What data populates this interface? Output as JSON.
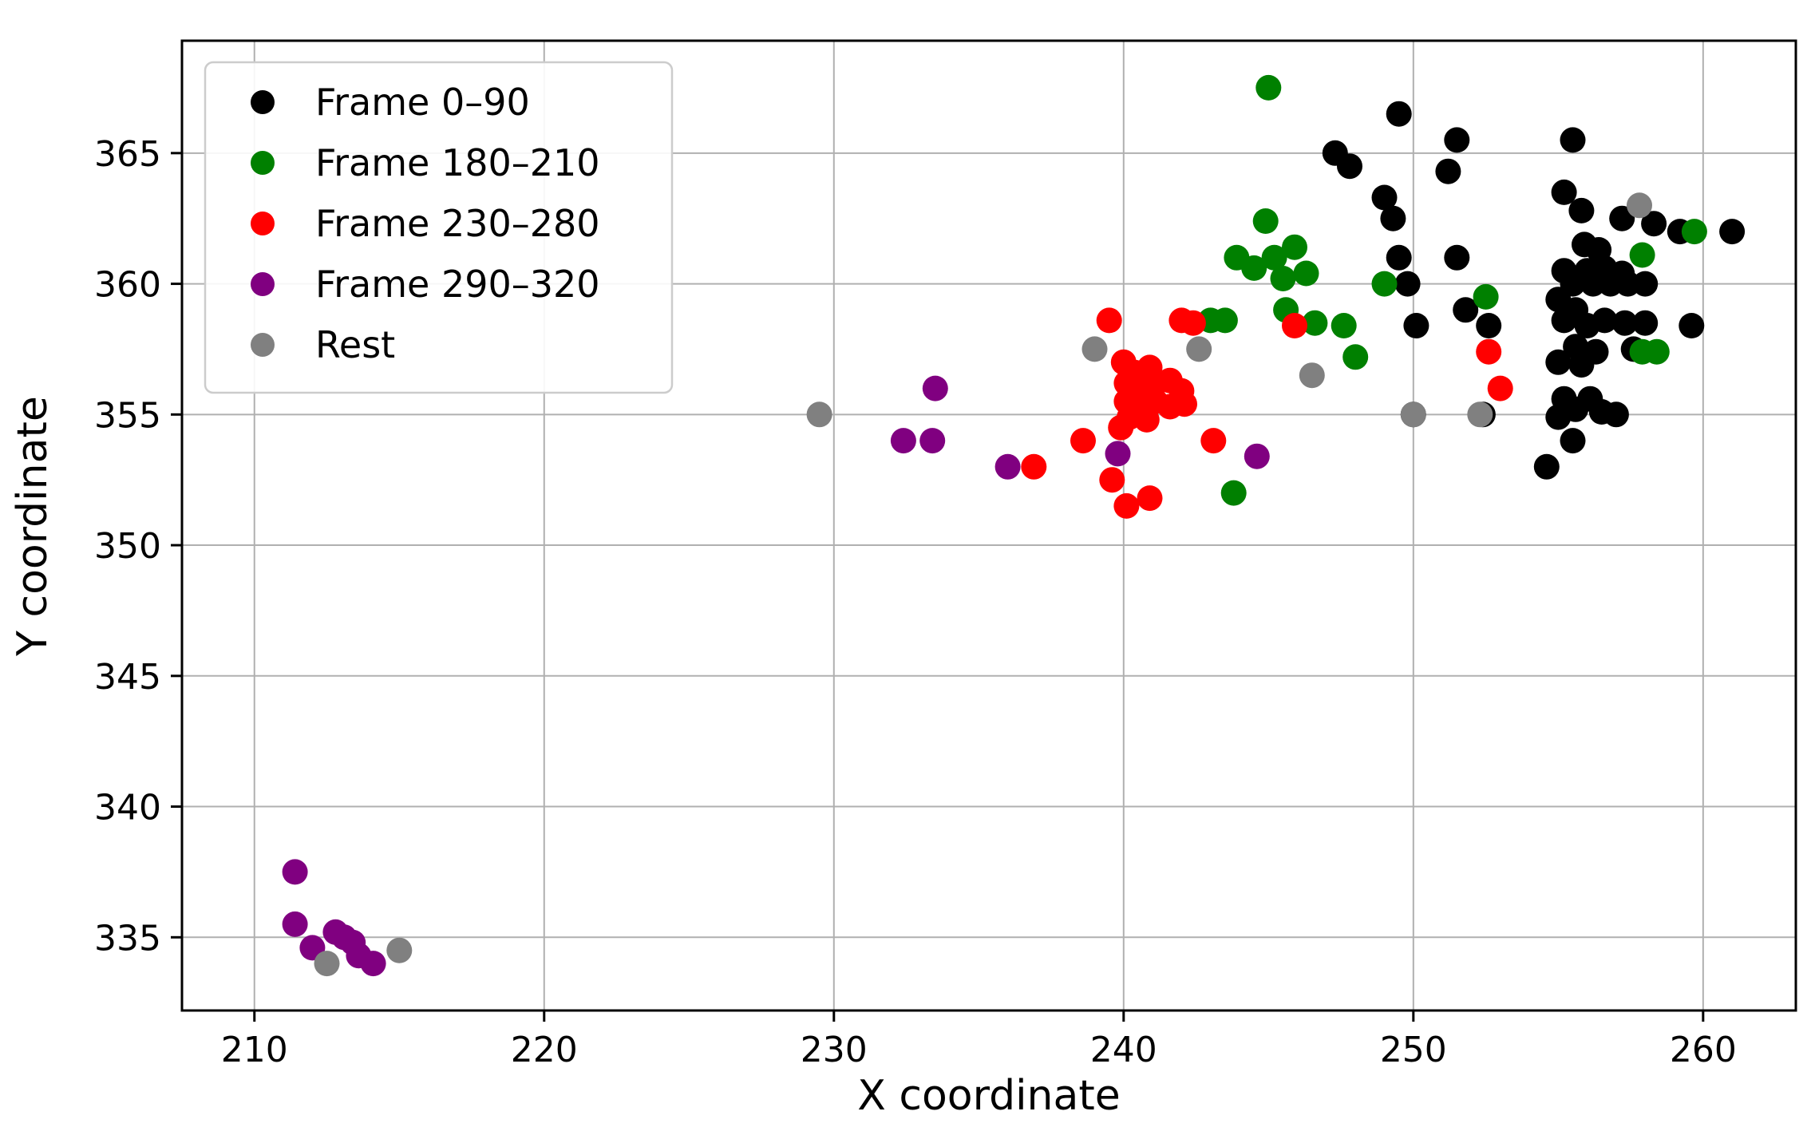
{
  "chart_data": {
    "type": "scatter",
    "title": "",
    "xlabel": "X coordinate",
    "ylabel": "Y coordinate",
    "xlim": [
      207.5,
      263.2
    ],
    "ylim": [
      332.2,
      369.3
    ],
    "xticks": [
      210,
      220,
      230,
      240,
      250,
      260
    ],
    "yticks": [
      335,
      340,
      345,
      350,
      355,
      360,
      365
    ],
    "grid": true,
    "grid_color": "#b0b0b0",
    "spine_color": "#000000",
    "legend_position": "upper left",
    "marker_radius": 16,
    "series": [
      {
        "name": "Frame 0–90",
        "color": "#000000",
        "points": [
          [
            249.5,
            366.5
          ],
          [
            247.3,
            365.0
          ],
          [
            251.5,
            365.5
          ],
          [
            247.8,
            364.5
          ],
          [
            251.2,
            364.3
          ],
          [
            249.0,
            363.3
          ],
          [
            249.3,
            362.5
          ],
          [
            255.5,
            365.5
          ],
          [
            255.2,
            363.5
          ],
          [
            255.8,
            362.8
          ],
          [
            257.2,
            362.5
          ],
          [
            258.3,
            362.3
          ],
          [
            259.2,
            362.0
          ],
          [
            261.0,
            362.0
          ],
          [
            255.9,
            361.5
          ],
          [
            256.4,
            361.3
          ],
          [
            249.5,
            361.0
          ],
          [
            251.5,
            361.0
          ],
          [
            255.2,
            360.5
          ],
          [
            256.0,
            360.5
          ],
          [
            256.6,
            360.6
          ],
          [
            257.2,
            360.4
          ],
          [
            255.5,
            360.0
          ],
          [
            256.2,
            360.0
          ],
          [
            256.8,
            360.0
          ],
          [
            257.4,
            360.0
          ],
          [
            258.0,
            360.0
          ],
          [
            249.8,
            360.0
          ],
          [
            255.0,
            359.4
          ],
          [
            255.6,
            359.0
          ],
          [
            251.8,
            359.0
          ],
          [
            255.2,
            358.6
          ],
          [
            256.0,
            358.4
          ],
          [
            256.6,
            358.6
          ],
          [
            257.3,
            358.5
          ],
          [
            258.0,
            358.5
          ],
          [
            259.6,
            358.4
          ],
          [
            250.1,
            358.4
          ],
          [
            252.6,
            358.4
          ],
          [
            255.6,
            357.6
          ],
          [
            256.3,
            357.4
          ],
          [
            257.6,
            357.5
          ],
          [
            255.0,
            357.0
          ],
          [
            255.8,
            356.9
          ],
          [
            255.2,
            355.6
          ],
          [
            255.6,
            355.2
          ],
          [
            256.1,
            355.6
          ],
          [
            256.5,
            355.1
          ],
          [
            255.0,
            354.9
          ],
          [
            257.0,
            355.0
          ],
          [
            250.0,
            355.0
          ],
          [
            252.4,
            355.0
          ],
          [
            255.5,
            354.0
          ],
          [
            254.6,
            353.0
          ]
        ]
      },
      {
        "name": "Frame 180–210",
        "color": "#008000",
        "points": [
          [
            245.0,
            367.5
          ],
          [
            244.9,
            362.4
          ],
          [
            243.9,
            361.0
          ],
          [
            244.5,
            360.6
          ],
          [
            245.2,
            361.0
          ],
          [
            245.5,
            360.2
          ],
          [
            245.9,
            361.4
          ],
          [
            246.3,
            360.4
          ],
          [
            243.0,
            358.6
          ],
          [
            243.5,
            358.6
          ],
          [
            245.6,
            359.0
          ],
          [
            246.6,
            358.5
          ],
          [
            247.6,
            358.4
          ],
          [
            248.0,
            357.2
          ],
          [
            249.0,
            360.0
          ],
          [
            252.5,
            359.5
          ],
          [
            257.9,
            361.1
          ],
          [
            259.7,
            362.0
          ],
          [
            257.9,
            357.4
          ],
          [
            258.4,
            357.4
          ],
          [
            243.8,
            352.0
          ]
        ]
      },
      {
        "name": "Frame 230–280",
        "color": "#ff0000",
        "points": [
          [
            239.5,
            358.6
          ],
          [
            242.0,
            358.6
          ],
          [
            242.4,
            358.5
          ],
          [
            240.0,
            357.0
          ],
          [
            240.4,
            356.6
          ],
          [
            240.9,
            356.8
          ],
          [
            240.1,
            356.2
          ],
          [
            240.6,
            356.0
          ],
          [
            241.1,
            356.2
          ],
          [
            241.6,
            356.3
          ],
          [
            242.0,
            355.9
          ],
          [
            240.1,
            355.5
          ],
          [
            240.6,
            355.4
          ],
          [
            241.1,
            355.5
          ],
          [
            241.6,
            355.3
          ],
          [
            242.1,
            355.4
          ],
          [
            240.2,
            354.9
          ],
          [
            240.8,
            354.8
          ],
          [
            239.9,
            354.5
          ],
          [
            238.6,
            354.0
          ],
          [
            243.1,
            354.0
          ],
          [
            236.9,
            353.0
          ],
          [
            239.6,
            352.5
          ],
          [
            240.1,
            351.5
          ],
          [
            240.9,
            351.8
          ],
          [
            245.9,
            358.4
          ],
          [
            252.6,
            357.4
          ],
          [
            253.0,
            356.0
          ]
        ]
      },
      {
        "name": "Frame 290–320",
        "color": "#800080",
        "points": [
          [
            211.4,
            337.5
          ],
          [
            211.4,
            335.5
          ],
          [
            212.0,
            334.6
          ],
          [
            212.8,
            335.2
          ],
          [
            213.1,
            335.0
          ],
          [
            213.4,
            334.8
          ],
          [
            213.6,
            334.3
          ],
          [
            214.1,
            334.0
          ],
          [
            233.5,
            356.0
          ],
          [
            232.4,
            354.0
          ],
          [
            233.4,
            354.0
          ],
          [
            236.0,
            353.0
          ],
          [
            239.8,
            353.5
          ],
          [
            244.6,
            353.4
          ]
        ]
      },
      {
        "name": "Rest",
        "color": "#808080",
        "points": [
          [
            229.5,
            355.0
          ],
          [
            239.0,
            357.5
          ],
          [
            242.6,
            357.5
          ],
          [
            246.5,
            356.5
          ],
          [
            250.0,
            355.0
          ],
          [
            252.3,
            355.0
          ],
          [
            257.8,
            363.0
          ],
          [
            212.5,
            334.0
          ],
          [
            215.0,
            334.5
          ]
        ]
      }
    ]
  }
}
